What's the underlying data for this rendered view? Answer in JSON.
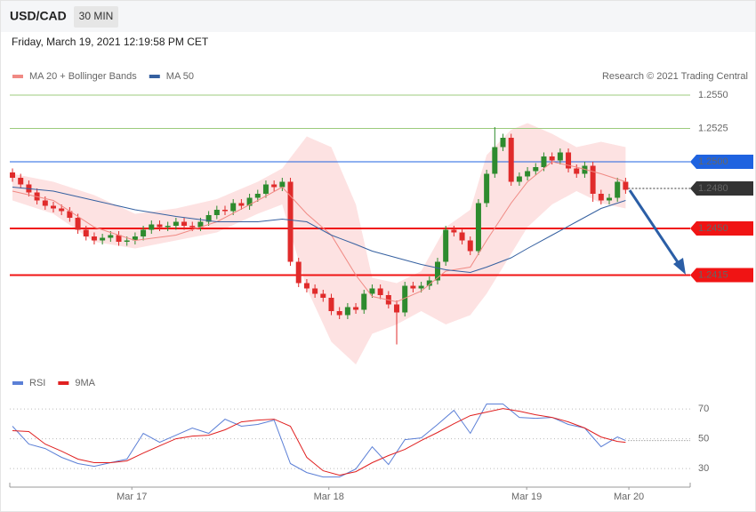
{
  "header": {
    "symbol": "USD/CAD",
    "timeframe": "30 MIN",
    "datetime": "Friday, March 19, 2021 12:19:58 PM CET"
  },
  "chart_data": [
    {
      "type": "candlestick",
      "attribution": "Research © 2021 Trading Central",
      "up_color": "#2e8b2e",
      "down_color": "#e02b2b",
      "xlim": [
        -0.33,
        82.9
      ],
      "ylim": [
        1.2348,
        1.2558
      ],
      "x": [
        0,
        1,
        2,
        3,
        4,
        5,
        6,
        7,
        8,
        9,
        10,
        11,
        12,
        13,
        14,
        15,
        16,
        17,
        18,
        19,
        20,
        21,
        22,
        23,
        24,
        25,
        26,
        27,
        28,
        29,
        30,
        31,
        32,
        33,
        34,
        35,
        36,
        37,
        38,
        39,
        40,
        41,
        42,
        43,
        44,
        45,
        46,
        47,
        48,
        49,
        50,
        51,
        52,
        53,
        54,
        55,
        56,
        57,
        58,
        59,
        60,
        61,
        62,
        63,
        64,
        65,
        66,
        67,
        68,
        69,
        70,
        71,
        72,
        73,
        74,
        75
      ],
      "open": [
        1.2492,
        1.2488,
        1.2483,
        1.2477,
        1.2471,
        1.2467,
        1.2465,
        1.2463,
        1.2458,
        1.2449,
        1.2444,
        1.2441,
        1.2443,
        1.2445,
        1.244,
        1.2441,
        1.2444,
        1.2449,
        1.2453,
        1.2451,
        1.2452,
        1.2455,
        1.2452,
        1.2451,
        1.2455,
        1.246,
        1.2464,
        1.2463,
        1.2469,
        1.2467,
        1.2473,
        1.2476,
        1.2483,
        1.2481,
        1.2485,
        1.2425,
        1.2409,
        1.2405,
        1.2401,
        1.2398,
        1.2388,
        1.2385,
        1.2391,
        1.2389,
        1.2401,
        1.2405,
        1.24,
        1.2393,
        1.2387,
        1.2407,
        1.2405,
        1.2407,
        1.2411,
        1.2425,
        1.2449,
        1.2447,
        1.2441,
        1.2433,
        1.2469,
        1.2491,
        1.2511,
        1.2518,
        1.2485,
        1.2489,
        1.2493,
        1.2496,
        1.2504,
        1.2501,
        1.2507,
        1.2495,
        1.2491,
        1.2497,
        1.2476,
        1.2471,
        1.2473,
        1.2485
      ],
      "high": [
        1.2495,
        1.2491,
        1.2486,
        1.248,
        1.2474,
        1.247,
        1.2468,
        1.2466,
        1.2461,
        1.2452,
        1.2447,
        1.2446,
        1.2448,
        1.2448,
        1.2444,
        1.2447,
        1.2452,
        1.2456,
        1.2456,
        1.2455,
        1.2458,
        1.2458,
        1.2455,
        1.2458,
        1.2463,
        1.2467,
        1.2467,
        1.2472,
        1.2472,
        1.2476,
        1.2479,
        1.2486,
        1.2486,
        1.2488,
        1.2488,
        1.2428,
        1.2412,
        1.2408,
        1.2404,
        1.2401,
        1.2391,
        1.2394,
        1.2394,
        1.2404,
        1.2408,
        1.2408,
        1.2403,
        1.2396,
        1.241,
        1.241,
        1.241,
        1.2414,
        1.2428,
        1.2452,
        1.2452,
        1.245,
        1.2444,
        1.2472,
        1.2494,
        1.2526,
        1.2521,
        1.2521,
        1.2492,
        1.2496,
        1.2499,
        1.2507,
        1.2507,
        1.251,
        1.251,
        1.2498,
        1.25,
        1.25,
        1.2479,
        1.2476,
        1.2488,
        1.2488
      ],
      "low": [
        1.2485,
        1.248,
        1.2474,
        1.2468,
        1.2464,
        1.2462,
        1.246,
        1.2455,
        1.2446,
        1.2441,
        1.2438,
        1.2438,
        1.244,
        1.2437,
        1.2437,
        1.2438,
        1.2441,
        1.2446,
        1.2448,
        1.2448,
        1.2449,
        1.2449,
        1.2448,
        1.2448,
        1.2452,
        1.2457,
        1.246,
        1.246,
        1.2464,
        1.2464,
        1.247,
        1.2473,
        1.2478,
        1.2478,
        1.2422,
        1.2406,
        1.2402,
        1.2398,
        1.2395,
        1.2385,
        1.2382,
        1.2382,
        1.2386,
        1.2386,
        1.2398,
        1.2397,
        1.239,
        1.2363,
        1.2384,
        1.2402,
        1.2402,
        1.2404,
        1.2408,
        1.2422,
        1.2444,
        1.2438,
        1.243,
        1.243,
        1.2466,
        1.2488,
        1.2508,
        1.2482,
        1.2482,
        1.2486,
        1.249,
        1.2493,
        1.2498,
        1.2498,
        1.2492,
        1.2488,
        1.2488,
        1.247,
        1.2468,
        1.2468,
        1.247,
        1.2476
      ],
      "close": [
        1.2488,
        1.2483,
        1.2477,
        1.2471,
        1.2467,
        1.2465,
        1.2463,
        1.2458,
        1.2449,
        1.2444,
        1.2441,
        1.2443,
        1.2445,
        1.244,
        1.2441,
        1.2444,
        1.2449,
        1.2453,
        1.2451,
        1.2452,
        1.2455,
        1.2452,
        1.2451,
        1.2455,
        1.246,
        1.2464,
        1.2463,
        1.2469,
        1.2467,
        1.2473,
        1.2476,
        1.2483,
        1.2481,
        1.2485,
        1.2425,
        1.2409,
        1.2405,
        1.2401,
        1.2398,
        1.2388,
        1.2385,
        1.2391,
        1.2389,
        1.2401,
        1.2405,
        1.24,
        1.2393,
        1.2387,
        1.2407,
        1.2405,
        1.2407,
        1.2411,
        1.2425,
        1.2449,
        1.2447,
        1.2441,
        1.2433,
        1.2469,
        1.2491,
        1.2511,
        1.2518,
        1.2485,
        1.2489,
        1.2493,
        1.2496,
        1.2504,
        1.2501,
        1.2507,
        1.2495,
        1.2491,
        1.2497,
        1.2476,
        1.2471,
        1.2473,
        1.2485,
        1.2479
      ],
      "series": [
        {
          "name": "MA 20 + Bollinger Bands",
          "color": "#f08a84",
          "band_color": "#fde2e2",
          "x": [
            0,
            5,
            10,
            15,
            20,
            25,
            30,
            33,
            36,
            39,
            42,
            44,
            47,
            50,
            53,
            56,
            58,
            61,
            63,
            66,
            69,
            72,
            75
          ],
          "values": [
            1.2478,
            1.2471,
            1.2451,
            1.2441,
            1.2445,
            1.2455,
            1.2471,
            1.2481,
            1.2461,
            1.2445,
            1.2415,
            1.2399,
            1.2395,
            1.2403,
            1.2418,
            1.2421,
            1.2441,
            1.2469,
            1.2485,
            1.25,
            1.2496,
            1.2491,
            1.2485
          ],
          "upper": [
            1.2491,
            1.2485,
            1.2475,
            1.2461,
            1.2465,
            1.2472,
            1.2485,
            1.2495,
            1.2519,
            1.2511,
            1.2468,
            1.2413,
            1.2409,
            1.2418,
            1.2451,
            1.2464,
            1.2505,
            1.2524,
            1.2529,
            1.2521,
            1.2511,
            1.2515,
            1.2511
          ],
          "lower": [
            1.2471,
            1.2461,
            1.244,
            1.2435,
            1.2441,
            1.2447,
            1.2461,
            1.2468,
            1.2405,
            1.2365,
            1.2348,
            1.2371,
            1.2378,
            1.2388,
            1.2378,
            1.2385,
            1.2401,
            1.2431,
            1.2451,
            1.2468,
            1.2478,
            1.2469,
            1.2465
          ]
        },
        {
          "name": "MA 50",
          "color": "#3560a0",
          "x": [
            0,
            5,
            10,
            15,
            20,
            25,
            30,
            33,
            36,
            39,
            42,
            44,
            47,
            50,
            53,
            56,
            58,
            61,
            63,
            66,
            69,
            72,
            75
          ],
          "values": [
            1.2481,
            1.2478,
            1.2471,
            1.2464,
            1.2459,
            1.2455,
            1.2455,
            1.2457,
            1.2455,
            1.2445,
            1.2438,
            1.2433,
            1.2428,
            1.2423,
            1.2419,
            1.2417,
            1.2421,
            1.2428,
            1.2435,
            1.2445,
            1.2455,
            1.2465,
            1.2471
          ]
        }
      ],
      "levels": [
        {
          "value": 1.255,
          "label": "1.2550",
          "color": "#9ccb7c",
          "line": "thin",
          "tag": false
        },
        {
          "value": 1.2525,
          "label": "1.2525",
          "color": "#9ccb7c",
          "line": "thin",
          "tag": false
        },
        {
          "value": 1.25,
          "label": "1.2500",
          "color": "#1f63e0",
          "line": "thin",
          "tag": true
        },
        {
          "value": 1.248,
          "label": "1.2480",
          "color": "#333333",
          "line": "dotted",
          "tag": true
        },
        {
          "value": 1.245,
          "label": "1.2450",
          "color": "#f01414",
          "line": "thick",
          "tag": true
        },
        {
          "value": 1.2415,
          "label": "1.2415",
          "color": "#f01414",
          "line": "thick",
          "tag": true
        }
      ]
    },
    {
      "type": "line",
      "xlim": [
        -0.33,
        82.9
      ],
      "ylim": [
        19,
        79
      ],
      "yticks": [
        30,
        50,
        70
      ],
      "xticks": [
        {
          "value": 14.6,
          "label": "Mar 17"
        },
        {
          "value": 38.7,
          "label": "Mar 18"
        },
        {
          "value": 62.9,
          "label": "Mar 19"
        },
        {
          "value": 75.4,
          "label": "Mar 20"
        }
      ],
      "series": [
        {
          "name": "RSI",
          "color": "#5b7fd6",
          "x": [
            0,
            2,
            4,
            6,
            8,
            10,
            12,
            14,
            16,
            18,
            20,
            22,
            24,
            26,
            28,
            30,
            32,
            34,
            36,
            38,
            40,
            42,
            44,
            46,
            48,
            50,
            52,
            54,
            56,
            58,
            60,
            62,
            64,
            66,
            68,
            70,
            72,
            74,
            75
          ],
          "values": [
            58.4,
            46.4,
            43.4,
            37.5,
            33.3,
            31.5,
            33.9,
            36.3,
            53.6,
            47.6,
            52.4,
            57.2,
            53.6,
            63.1,
            58.4,
            59.6,
            62.5,
            33.3,
            27.3,
            24.3,
            24.3,
            29.7,
            44.6,
            32.7,
            49.4,
            50.6,
            59.6,
            69.1,
            53.6,
            73.3,
            73.3,
            64.3,
            63.7,
            64.3,
            59.6,
            57.2,
            44.6,
            51.2,
            48.8
          ]
        },
        {
          "name": "9MA",
          "color": "#e02020",
          "x": [
            0,
            2,
            4,
            6,
            8,
            10,
            12,
            14,
            16,
            18,
            20,
            22,
            24,
            26,
            28,
            30,
            32,
            34,
            36,
            38,
            40,
            42,
            44,
            46,
            48,
            50,
            52,
            54,
            56,
            58,
            60,
            62,
            64,
            66,
            68,
            70,
            72,
            74,
            75
          ],
          "values": [
            55.4,
            54.8,
            46.4,
            41.6,
            36.3,
            33.9,
            33.9,
            35.1,
            40.4,
            45.2,
            50,
            51.8,
            52.4,
            56,
            61.3,
            62.5,
            63.1,
            58.4,
            37.5,
            28.5,
            25.5,
            27.9,
            33.9,
            38.7,
            42.8,
            48.8,
            54.2,
            60.1,
            65.5,
            67.9,
            70.3,
            68.5,
            66.1,
            64.3,
            61.3,
            57.2,
            51.2,
            48.2,
            47.6
          ]
        }
      ]
    }
  ]
}
